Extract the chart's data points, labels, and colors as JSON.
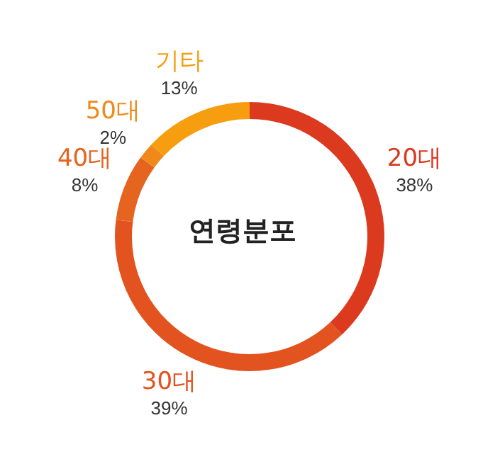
{
  "chart_data": {
    "type": "donut",
    "title": "연령분포",
    "categories": [
      "20대",
      "30대",
      "40대",
      "50대",
      "기타"
    ],
    "values": [
      38,
      39,
      8,
      2,
      13
    ],
    "value_labels": [
      "38%",
      "39%",
      "8%",
      "2%",
      "13%"
    ],
    "colors": [
      "#db3a1e",
      "#e2531f",
      "#e5641f",
      "#ef8a1a",
      "#f69d10"
    ]
  }
}
